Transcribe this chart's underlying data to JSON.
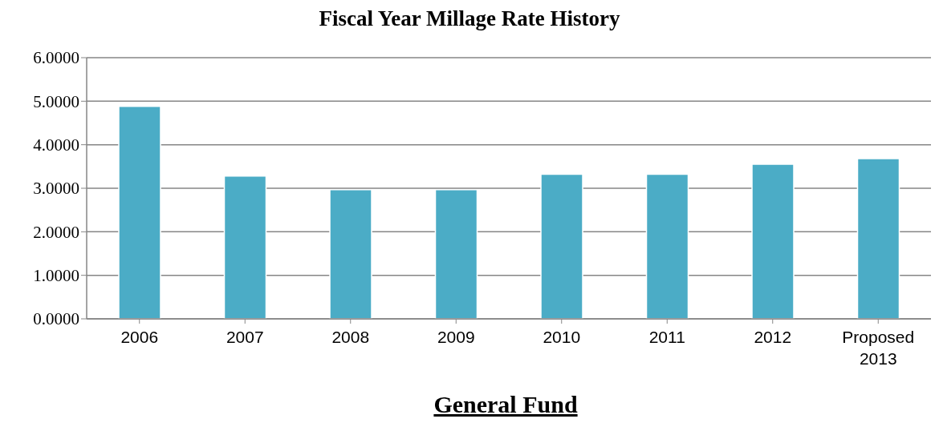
{
  "chart_data": {
    "type": "bar",
    "title": "Fiscal Year Millage Rate History",
    "categories": [
      "2006",
      "2007",
      "2008",
      "2009",
      "2010",
      "2011",
      "2012",
      "Proposed 2013"
    ],
    "values": [
      4.88,
      3.28,
      2.97,
      2.97,
      3.32,
      3.32,
      3.55,
      3.68
    ],
    "color": "#4bacc6",
    "ylim": [
      0,
      6
    ],
    "yticks": [
      {
        "value": 0,
        "label": "0.0000"
      },
      {
        "value": 1,
        "label": "1.0000"
      },
      {
        "value": 2,
        "label": "2.0000"
      },
      {
        "value": 3,
        "label": "3.0000"
      },
      {
        "value": 4,
        "label": "4.0000"
      },
      {
        "value": 5,
        "label": "5.0000"
      },
      {
        "value": 6,
        "label": "6.0000"
      }
    ],
    "grid": "y",
    "legend": false,
    "annotations": [
      "General Fund"
    ]
  }
}
